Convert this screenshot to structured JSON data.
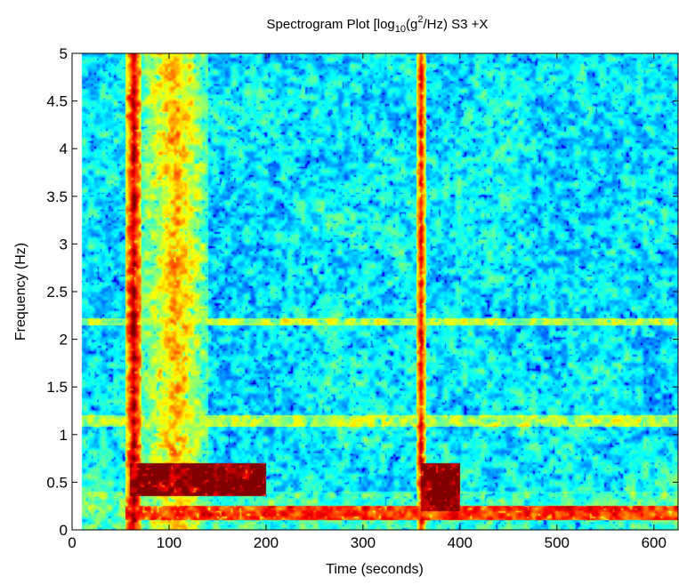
{
  "chart_data": {
    "type": "heatmap",
    "title": {
      "prefix": "Spectrogram Plot [log",
      "sub": "10",
      "mid": "(g",
      "sup": "2",
      "suffix": "/Hz) S3 +X"
    },
    "xlabel": "Time (seconds)",
    "ylabel": "Frequency (Hz)",
    "xlim": [
      0,
      625
    ],
    "ylim": [
      0,
      5
    ],
    "data_time_range": [
      10,
      625
    ],
    "xticks": [
      0,
      100,
      200,
      300,
      400,
      500,
      600
    ],
    "xtick_labels": [
      "0",
      "100",
      "200",
      "300",
      "400",
      "500",
      "600"
    ],
    "yticks": [
      0,
      0.5,
      1,
      1.5,
      2,
      2.5,
      3,
      3.5,
      4,
      4.5,
      5
    ],
    "ytick_labels": [
      "0",
      "0.5",
      "1",
      "1.5",
      "2",
      "2.5",
      "3",
      "3.5",
      "4",
      "4.5",
      "5"
    ],
    "colormap": "jet",
    "grid": false,
    "features": [
      {
        "kind": "broadband_event",
        "time_start": 55,
        "time_end": 72,
        "freq_min": 0,
        "freq_max": 5,
        "level": 0.95
      },
      {
        "kind": "broadband_event",
        "time_start": 72,
        "time_end": 140,
        "freq_min": 0,
        "freq_max": 5,
        "level": 0.7
      },
      {
        "kind": "broadband_event",
        "time_start": 355,
        "time_end": 365,
        "freq_min": 0,
        "freq_max": 5,
        "level": 0.88
      },
      {
        "kind": "low_freq_band",
        "time_start": 60,
        "time_end": 200,
        "freq_min": 0.35,
        "freq_max": 0.7,
        "level": 1.0
      },
      {
        "kind": "low_freq_band",
        "time_start": 360,
        "time_end": 400,
        "freq_min": 0.2,
        "freq_max": 0.7,
        "level": 1.0
      },
      {
        "kind": "low_freq_band",
        "time_start": 55,
        "time_end": 625,
        "freq_min": 0.1,
        "freq_max": 0.25,
        "level": 0.82
      },
      {
        "kind": "narrow_line",
        "time_start": 10,
        "time_end": 625,
        "freq_min": 1.08,
        "freq_max": 1.2,
        "level": 0.55
      },
      {
        "kind": "narrow_line",
        "time_start": 10,
        "time_end": 625,
        "freq_min": 2.15,
        "freq_max": 2.22,
        "level": 0.55
      }
    ],
    "colors": {
      "background": "#ffffff",
      "axes": "#000000",
      "ramp": [
        "#00008f",
        "#0000ff",
        "#00ffff",
        "#ffff00",
        "#ff0000",
        "#800000"
      ]
    }
  }
}
